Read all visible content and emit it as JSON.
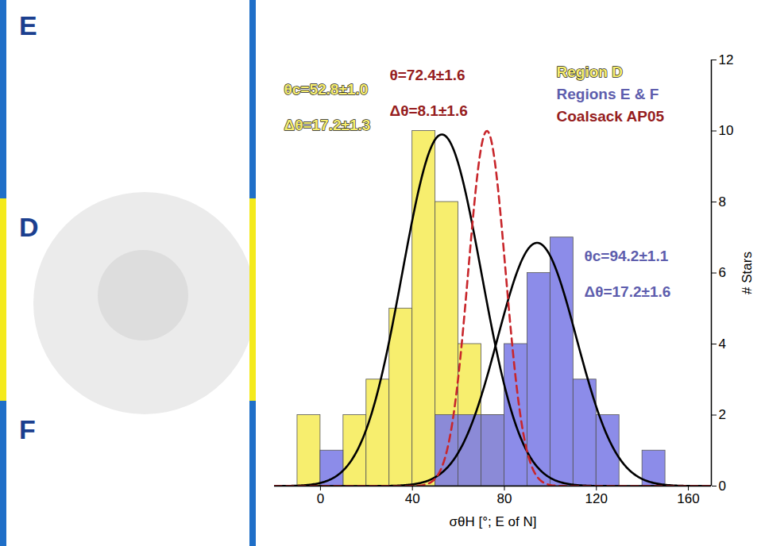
{
  "chart_data": {
    "type": "histogram",
    "x_label": "σθH [°; E of N]",
    "y_label": "# Stars",
    "bins": [
      -10,
      0,
      10,
      20,
      30,
      40,
      50,
      60,
      70,
      80,
      90,
      100,
      110,
      120,
      130,
      140,
      150
    ],
    "series": [
      {
        "name": "Region D",
        "type": "bar",
        "color": "#f7ee6e",
        "line_style": "solid",
        "values": [
          2,
          0,
          2,
          3,
          5,
          10,
          8,
          4,
          2,
          0,
          0,
          0,
          0,
          0,
          0,
          0
        ],
        "fit": {
          "color": "#000000",
          "center": 52.8,
          "width": 17.2,
          "peak": 9.9,
          "labels": [
            "θc=52.8±1.0",
            "Δθ=17.2±1.3"
          ]
        }
      },
      {
        "name": "Regions E & F",
        "type": "bar",
        "color": "#7c7ce6",
        "line_style": "solid",
        "values": [
          0,
          1,
          0,
          0,
          0,
          0,
          2,
          2,
          2,
          4,
          6,
          7,
          3,
          2,
          0,
          1
        ],
        "fit": {
          "color": "#000000",
          "center": 94.2,
          "width": 17.2,
          "peak": 6.85,
          "labels": [
            "θc=94.2±1.1",
            "Δθ=17.2±1.6"
          ]
        }
      },
      {
        "name": "Coalsack AP05",
        "type": "line",
        "color": "#c8262b",
        "line_style": "dashed",
        "fit": {
          "color": "#c8262b",
          "center": 72.4,
          "width": 8.1,
          "peak": 10,
          "labels": [
            "θ=72.4±1.6",
            "Δθ=8.1±1.6"
          ]
        }
      }
    ],
    "xlim": [
      -20,
      170
    ],
    "xticks": [
      0,
      40,
      80,
      120,
      160
    ],
    "ylim": [
      0,
      12
    ],
    "yticks": [
      0,
      2,
      4,
      6,
      8,
      10,
      12
    ],
    "legend": "top-right",
    "grid": false
  },
  "panel": {
    "regions": [
      {
        "label": "E",
        "color": "#1f6fc8"
      },
      {
        "label": "D",
        "color": "#f4ea1c"
      },
      {
        "label": "F",
        "color": "#1f6fc8"
      }
    ]
  }
}
